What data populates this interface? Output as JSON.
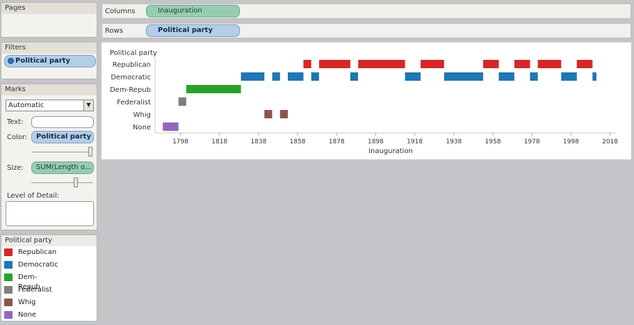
{
  "pages": {
    "title": "Pages"
  },
  "filters": {
    "title": "Filters",
    "pill": "Political party"
  },
  "marks": {
    "title": "Marks",
    "mark_type": "Automatic",
    "text_label": "Text:",
    "color_label": "Color:",
    "color_pill": "Political party",
    "size_label": "Size:",
    "size_pill": "SUM(Length o...",
    "lod_label": "Level of Detail:"
  },
  "shelves": {
    "columns_label": "Columns",
    "columns_pill": "Inauguration",
    "rows_label": "Rows",
    "rows_pill": "Political party"
  },
  "legend": {
    "title": "Political party",
    "items": [
      {
        "label": "Republican",
        "color": "#d62728"
      },
      {
        "label": "Democratic",
        "color": "#1f77b4"
      },
      {
        "label": "Dem-Repub",
        "color": "#2ca02c"
      },
      {
        "label": "Federalist",
        "color": "#7f7f7f"
      },
      {
        "label": "Whig",
        "color": "#8c564b"
      },
      {
        "label": "None",
        "color": "#9467bd"
      }
    ]
  },
  "chart_data": {
    "type": "bar",
    "row_header": "Political party",
    "xlabel": "Inauguration",
    "xlim": [
      1785,
      2021
    ],
    "xticks": [
      "1798",
      "1818",
      "1838",
      "1858",
      "1878",
      "1898",
      "1918",
      "1938",
      "1958",
      "1978",
      "1998",
      "2018"
    ],
    "categories": [
      "Republican",
      "Democratic",
      "Dem-Repub",
      "Federalist",
      "Whig",
      "None"
    ],
    "series": [
      {
        "name": "Republican",
        "color": "#d62728",
        "intervals": [
          [
            1861,
            1865
          ],
          [
            1869,
            1885
          ],
          [
            1889,
            1913
          ],
          [
            1921,
            1933
          ],
          [
            1953,
            1961
          ],
          [
            1969,
            1977
          ],
          [
            1981,
            1993
          ],
          [
            2001,
            2009
          ]
        ]
      },
      {
        "name": "Democratic",
        "color": "#1f77b4",
        "intervals": [
          [
            1829,
            1841
          ],
          [
            1845,
            1849
          ],
          [
            1853,
            1861
          ],
          [
            1865,
            1869
          ],
          [
            1885,
            1889
          ],
          [
            1913,
            1921
          ],
          [
            1933,
            1953
          ],
          [
            1961,
            1969
          ],
          [
            1977,
            1981
          ],
          [
            1993,
            2001
          ],
          [
            2009,
            2011
          ]
        ]
      },
      {
        "name": "Dem-Repub",
        "color": "#2ca02c",
        "intervals": [
          [
            1801,
            1829
          ]
        ]
      },
      {
        "name": "Federalist",
        "color": "#7f7f7f",
        "intervals": [
          [
            1797,
            1801
          ]
        ]
      },
      {
        "name": "Whig",
        "color": "#8c564b",
        "intervals": [
          [
            1841,
            1845
          ],
          [
            1849,
            1853
          ]
        ]
      },
      {
        "name": "None",
        "color": "#9467bd",
        "intervals": [
          [
            1789,
            1797
          ]
        ]
      }
    ]
  }
}
